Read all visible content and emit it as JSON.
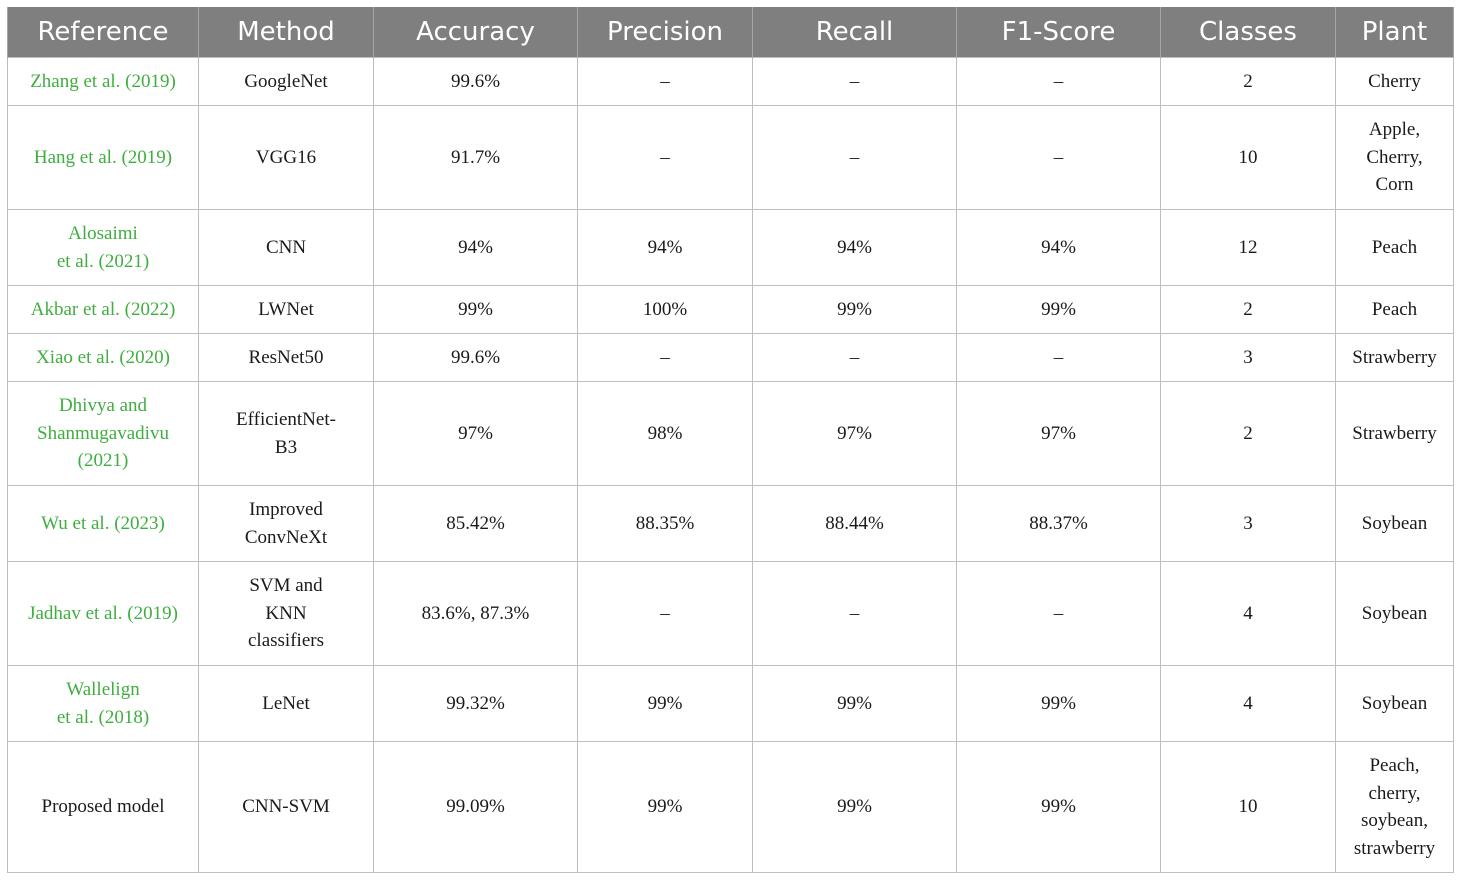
{
  "table": {
    "headers": [
      "Reference",
      "Method",
      "Accuracy",
      "Precision",
      "Recall",
      "F1-Score",
      "Classes",
      "Plant"
    ],
    "rows": [
      {
        "reference": "Zhang et al. (2019)",
        "method": "GoogleNet",
        "accuracy": "99.6%",
        "precision": "–",
        "recall": "–",
        "f1": "–",
        "classes": "2",
        "plant": "Cherry"
      },
      {
        "reference": "Hang et al. (2019)",
        "method": "VGG16",
        "accuracy": "91.7%",
        "precision": "–",
        "recall": "–",
        "f1": "–",
        "classes": "10",
        "plant": "Apple,\nCherry,\nCorn"
      },
      {
        "reference": "Alosaimi\net al. (2021)",
        "method": "CNN",
        "accuracy": "94%",
        "precision": "94%",
        "recall": "94%",
        "f1": "94%",
        "classes": "12",
        "plant": "Peach"
      },
      {
        "reference": "Akbar et al. (2022)",
        "method": "LWNet",
        "accuracy": "99%",
        "precision": "100%",
        "recall": "99%",
        "f1": "99%",
        "classes": "2",
        "plant": "Peach"
      },
      {
        "reference": "Xiao et al. (2020)",
        "method": "ResNet50",
        "accuracy": "99.6%",
        "precision": "–",
        "recall": "–",
        "f1": "–",
        "classes": "3",
        "plant": "Strawberry"
      },
      {
        "reference": "Dhivya and\nShanmugavadivu\n(2021)",
        "method": "EfficientNet-\nB3",
        "accuracy": "97%",
        "precision": "98%",
        "recall": "97%",
        "f1": "97%",
        "classes": "2",
        "plant": "Strawberry"
      },
      {
        "reference": "Wu et al. (2023)",
        "method": "Improved\nConvNeXt",
        "accuracy": "85.42%",
        "precision": "88.35%",
        "recall": "88.44%",
        "f1": "88.37%",
        "classes": "3",
        "plant": "Soybean"
      },
      {
        "reference": "Jadhav et al. (2019)",
        "method": "SVM and\nKNN\nclassifiers",
        "accuracy": "83.6%, 87.3%",
        "precision": "–",
        "recall": "–",
        "f1": "–",
        "classes": "4",
        "plant": "Soybean"
      },
      {
        "reference": "Wallelign\net al. (2018)",
        "method": "LeNet",
        "accuracy": "99.32%",
        "precision": "99%",
        "recall": "99%",
        "f1": "99%",
        "classes": "4",
        "plant": "Soybean"
      },
      {
        "reference": "Proposed model",
        "method": "CNN-SVM",
        "accuracy": "99.09%",
        "precision": "99%",
        "recall": "99%",
        "f1": "99%",
        "classes": "10",
        "plant": "Peach,\ncherry,\nsoybean,\nstrawberry"
      }
    ]
  },
  "colors": {
    "header_bg": "#7f7f7f",
    "header_text": "#ffffff",
    "citation_link": "#3fae3f",
    "grid": "#bdbdbd"
  }
}
